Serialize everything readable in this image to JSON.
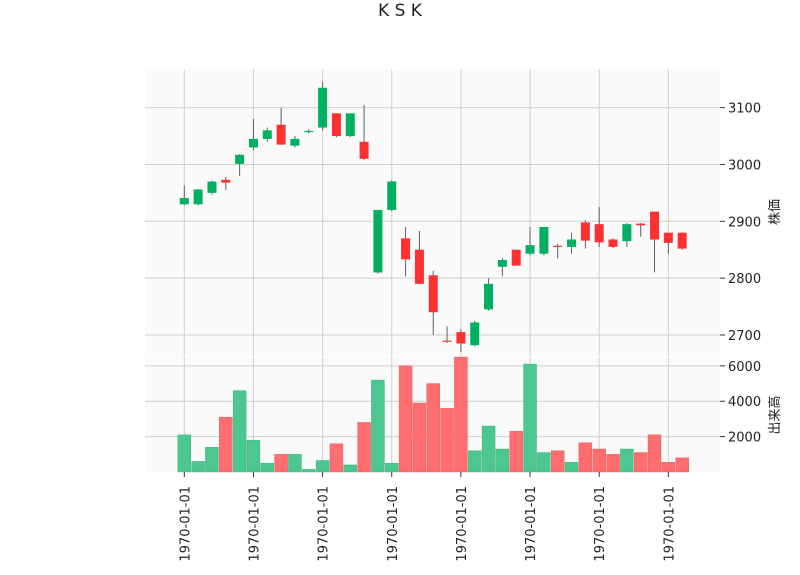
{
  "chart_data": {
    "type": "candlestick",
    "title": "K S K",
    "price_panel": {
      "ylabel": "株価",
      "ylim": [
        2663,
        3168
      ],
      "yticks": [
        2700,
        2800,
        2900,
        3000,
        3100
      ],
      "ytick_labels": [
        "2700",
        "2800",
        "2900",
        "3000",
        "3100"
      ],
      "grid": true
    },
    "volume_panel": {
      "ylabel": "出来高",
      "ylim": [
        0,
        6500
      ],
      "yticks": [
        2000,
        4000,
        6000
      ],
      "ytick_labels": [
        "2000",
        "4000",
        "6000"
      ],
      "grid": true
    },
    "x_tick_labels": [
      "1970-01-01",
      "1970-01-01",
      "1970-01-01",
      "1970-01-01",
      "1970-01-01",
      "1970-01-01",
      "1970-01-01",
      "1970-01-01"
    ],
    "x_tick_indices": [
      0,
      5,
      10,
      15,
      20,
      25,
      30,
      35
    ],
    "colors": {
      "up": "#00b060",
      "down": "#fe3032",
      "up_volume": "#4dc790",
      "down_volume": "#fe6e6f",
      "wick": "#606060",
      "panel_bg": "#fafafa",
      "grid": "#d0d0d0"
    },
    "candles": [
      {
        "open": 2930,
        "high": 2963,
        "low": 2928,
        "close": 2941,
        "volume": 2100
      },
      {
        "open": 2930,
        "high": 2957,
        "low": 2928,
        "close": 2956,
        "volume": 600
      },
      {
        "open": 2950,
        "high": 2972,
        "low": 2947,
        "close": 2970,
        "volume": 1400
      },
      {
        "open": 2973,
        "high": 2978,
        "low": 2955,
        "close": 2968,
        "volume": 3100
      },
      {
        "open": 3001,
        "high": 3018,
        "low": 2980,
        "close": 3017,
        "volume": 4600
      },
      {
        "open": 3030,
        "high": 3080,
        "low": 3025,
        "close": 3045,
        "volume": 1800
      },
      {
        "open": 3045,
        "high": 3065,
        "low": 3040,
        "close": 3060,
        "volume": 500
      },
      {
        "open": 3070,
        "high": 3100,
        "low": 3035,
        "close": 3035,
        "volume": 1000
      },
      {
        "open": 3033,
        "high": 3050,
        "low": 3030,
        "close": 3045,
        "volume": 1000
      },
      {
        "open": 3058,
        "high": 3062,
        "low": 3055,
        "close": 3059,
        "volume": 150
      },
      {
        "open": 3065,
        "high": 3145,
        "low": 3060,
        "close": 3135,
        "volume": 650
      },
      {
        "open": 3090,
        "high": 3090,
        "low": 3048,
        "close": 3050,
        "volume": 1600
      },
      {
        "open": 3050,
        "high": 3090,
        "low": 3048,
        "close": 3090,
        "volume": 400
      },
      {
        "open": 3040,
        "high": 3105,
        "low": 3008,
        "close": 3010,
        "volume": 2800
      },
      {
        "open": 2810,
        "high": 2920,
        "low": 2808,
        "close": 2920,
        "volume": 5200
      },
      {
        "open": 2920,
        "high": 2972,
        "low": 2918,
        "close": 2970,
        "volume": 500
      },
      {
        "open": 2870,
        "high": 2890,
        "low": 2803,
        "close": 2833,
        "volume": 6000
      },
      {
        "open": 2850,
        "high": 2883,
        "low": 2790,
        "close": 2790,
        "volume": 3900
      },
      {
        "open": 2805,
        "high": 2813,
        "low": 2700,
        "close": 2740,
        "volume": 5000
      },
      {
        "open": 2690,
        "high": 2715,
        "low": 2686,
        "close": 2688,
        "volume": 3600
      },
      {
        "open": 2705,
        "high": 2710,
        "low": 2670,
        "close": 2685,
        "volume": 6500
      },
      {
        "open": 2682,
        "high": 2725,
        "low": 2680,
        "close": 2722,
        "volume": 1200
      },
      {
        "open": 2745,
        "high": 2800,
        "low": 2743,
        "close": 2790,
        "volume": 2600
      },
      {
        "open": 2820,
        "high": 2835,
        "low": 2803,
        "close": 2832,
        "volume": 1300
      },
      {
        "open": 2850,
        "high": 2850,
        "low": 2823,
        "close": 2822,
        "volume": 2300
      },
      {
        "open": 2843,
        "high": 2890,
        "low": 2840,
        "close": 2858,
        "volume": 6100
      },
      {
        "open": 2843,
        "high": 2890,
        "low": 2840,
        "close": 2890,
        "volume": 1100
      },
      {
        "open": 2857,
        "high": 2860,
        "low": 2835,
        "close": 2855,
        "volume": 1200
      },
      {
        "open": 2855,
        "high": 2880,
        "low": 2843,
        "close": 2868,
        "volume": 550
      },
      {
        "open": 2898,
        "high": 2902,
        "low": 2852,
        "close": 2866,
        "volume": 1650
      },
      {
        "open": 2895,
        "high": 2925,
        "low": 2855,
        "close": 2863,
        "volume": 1300
      },
      {
        "open": 2868,
        "high": 2870,
        "low": 2853,
        "close": 2855,
        "volume": 1000
      },
      {
        "open": 2865,
        "high": 2897,
        "low": 2855,
        "close": 2895,
        "volume": 1300
      },
      {
        "open": 2896,
        "high": 2897,
        "low": 2873,
        "close": 2893,
        "volume": 1100
      },
      {
        "open": 2917,
        "high": 2917,
        "low": 2810,
        "close": 2868,
        "volume": 2100
      },
      {
        "open": 2880,
        "high": 2880,
        "low": 2843,
        "close": 2862,
        "volume": 550
      },
      {
        "open": 2880,
        "high": 2880,
        "low": 2850,
        "close": 2852,
        "volume": 800
      }
    ]
  }
}
